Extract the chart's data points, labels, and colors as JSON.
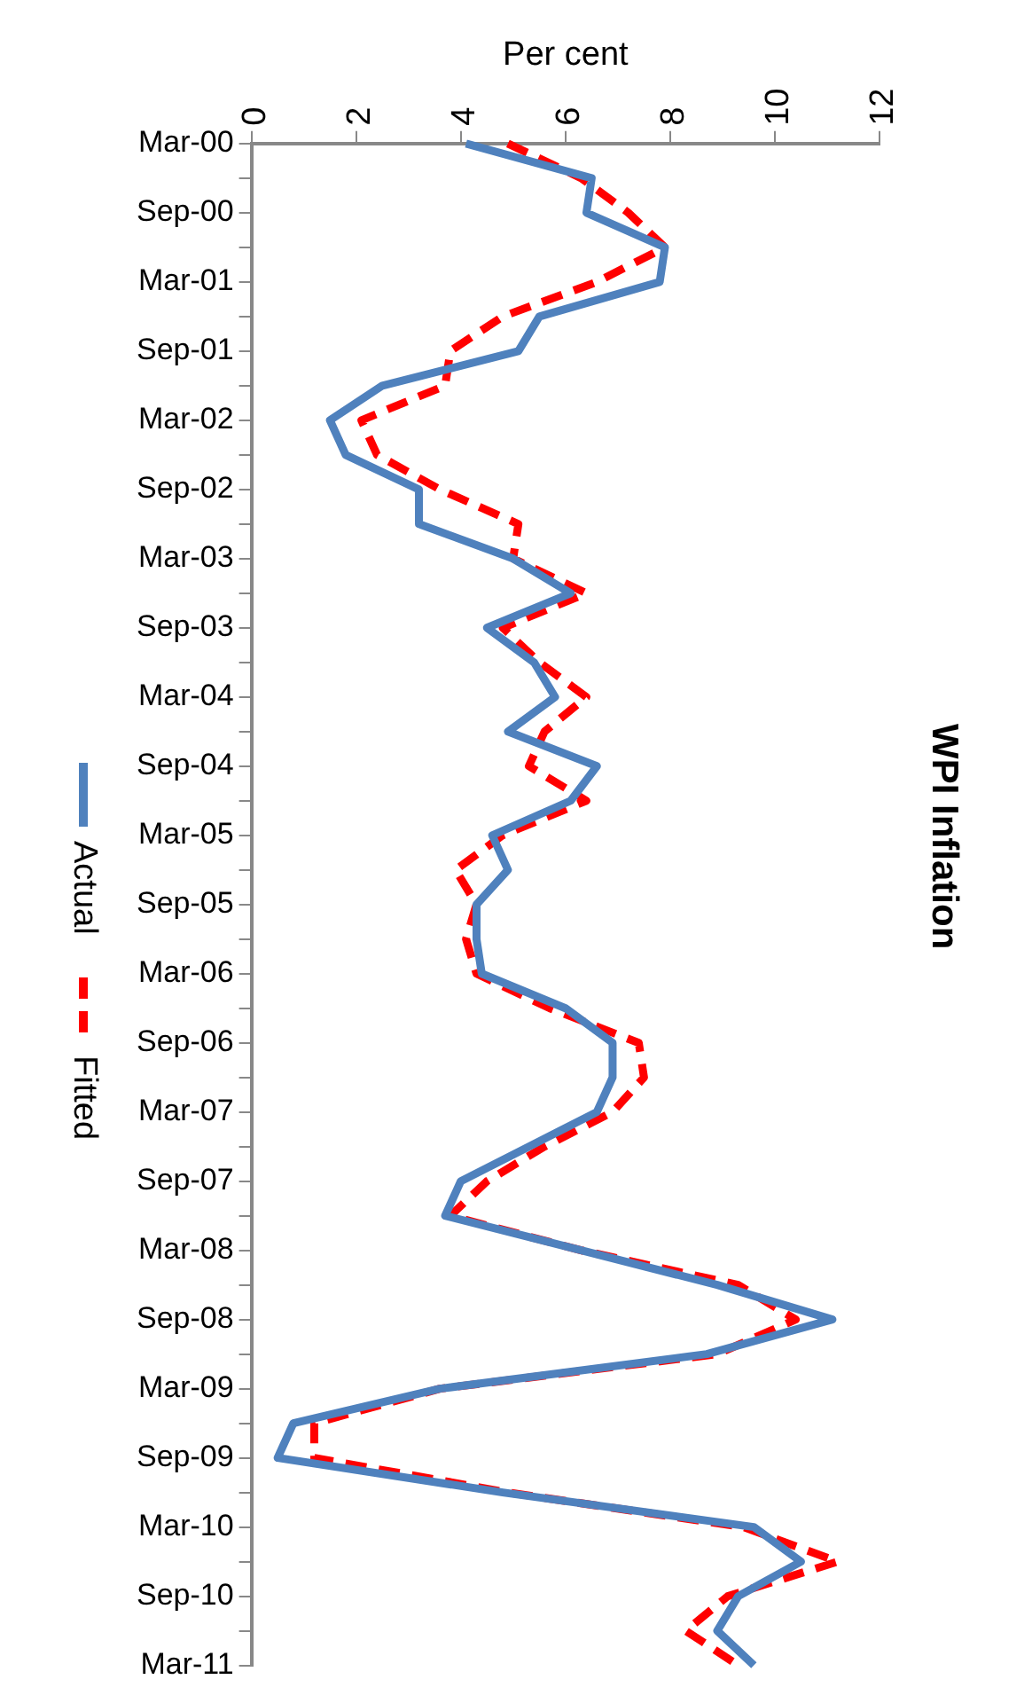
{
  "chart_data": {
    "type": "line",
    "title": "WPI Inflation",
    "xlabel": "Per cent",
    "orientation": "horizontal",
    "categories": [
      "Mar-00",
      null,
      "Sep-00",
      null,
      "Mar-01",
      null,
      "Sep-01",
      null,
      "Mar-02",
      null,
      "Sep-02",
      null,
      "Mar-03",
      null,
      "Sep-03",
      null,
      "Mar-04",
      null,
      "Sep-04",
      null,
      "Mar-05",
      null,
      "Sep-05",
      null,
      "Mar-06",
      null,
      "Sep-06",
      null,
      "Mar-07",
      null,
      "Sep-07",
      null,
      "Mar-08",
      null,
      "Sep-08",
      null,
      "Mar-09",
      null,
      "Sep-09",
      null,
      "Mar-10",
      null,
      "Sep-10",
      null,
      "Mar-11"
    ],
    "series": [
      {
        "name": "Actual",
        "color": "#4f81bd",
        "line_style": "solid",
        "values": [
          4.1,
          6.5,
          6.4,
          7.9,
          7.8,
          5.5,
          5.1,
          2.5,
          1.5,
          1.8,
          3.2,
          3.2,
          5.0,
          6.1,
          4.5,
          5.4,
          5.8,
          4.9,
          6.6,
          6.1,
          4.6,
          4.9,
          4.3,
          4.3,
          4.4,
          6.0,
          6.9,
          6.9,
          6.6,
          5.3,
          4.0,
          3.7,
          6.3,
          8.9,
          11.1,
          8.7,
          3.6,
          0.8,
          0.5,
          4.8,
          9.6,
          10.5,
          9.3,
          8.9,
          9.6
        ]
      },
      {
        "name": "Fitted",
        "color": "#ff0000",
        "line_style": "dashed",
        "values": [
          4.9,
          6.3,
          7.2,
          7.9,
          6.6,
          4.8,
          3.8,
          3.7,
          2.1,
          2.4,
          3.6,
          5.1,
          5.0,
          6.4,
          4.8,
          5.5,
          6.4,
          5.6,
          5.3,
          6.4,
          4.8,
          3.9,
          4.3,
          4.1,
          4.3,
          5.7,
          7.4,
          7.5,
          6.9,
          5.6,
          4.5,
          3.8,
          6.3,
          9.3,
          10.4,
          8.9,
          3.6,
          1.2,
          1.2,
          4.9,
          9.4,
          11.2,
          9.1,
          8.3,
          9.3
        ]
      }
    ],
    "xlim": [
      0,
      12
    ],
    "xticks": [
      0,
      2,
      4,
      6,
      8,
      10,
      12
    ],
    "grid": false,
    "legend": "left",
    "marker": "none"
  }
}
